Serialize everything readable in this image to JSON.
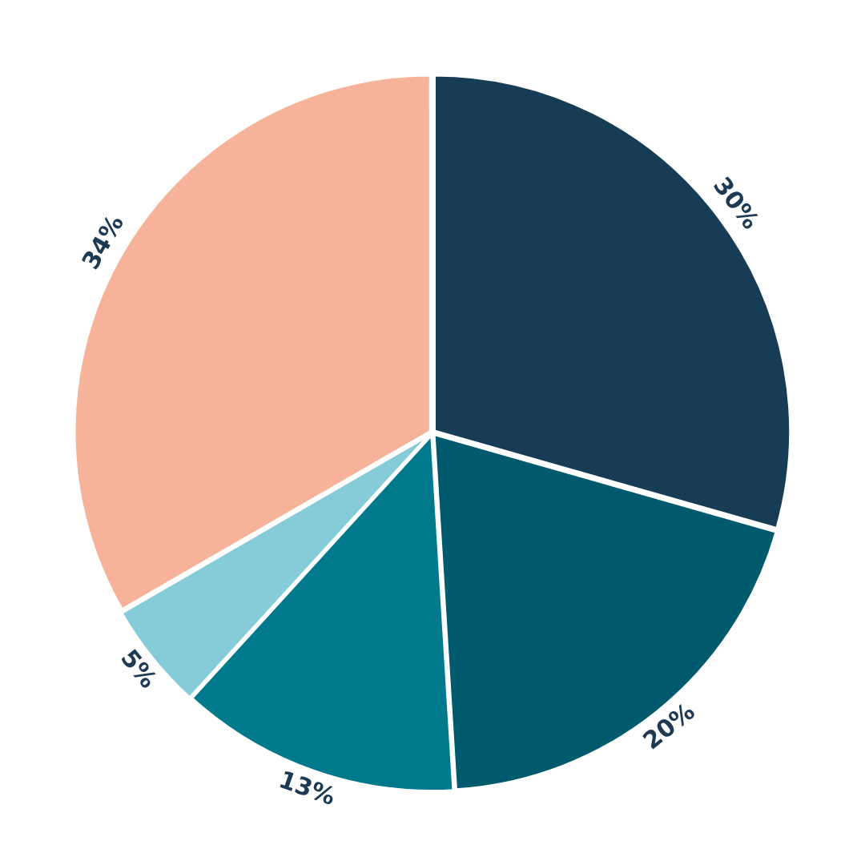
{
  "chart_data": {
    "type": "pie",
    "categories": [
      null,
      null,
      null,
      null,
      null
    ],
    "values": [
      30,
      20,
      13,
      5,
      34
    ],
    "value_labels": [
      "30%",
      "20%",
      "13%",
      "5%",
      "34%"
    ],
    "colors": [
      "#163c56",
      "#005a6e",
      "#00798c",
      "#86cbd8",
      "#f7b399"
    ],
    "legend": false
  }
}
